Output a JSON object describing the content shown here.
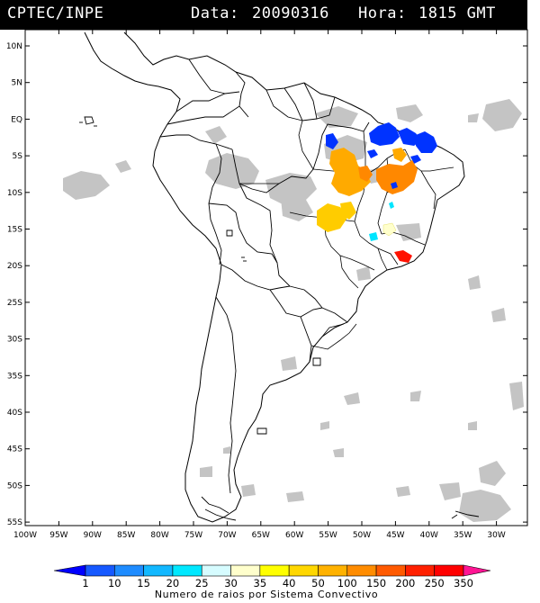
{
  "header": {
    "source": "CPTEC/INPE",
    "date_label": "Data:",
    "date": "20090316",
    "hour_label": "Hora:",
    "hour": "1815 GMT"
  },
  "map": {
    "lat_labels": [
      "10N",
      "5N",
      "EQ",
      "5S",
      "10S",
      "15S",
      "20S",
      "25S",
      "30S",
      "35S",
      "40S",
      "45S",
      "50S",
      "55S"
    ],
    "lon_labels": [
      "100W",
      "95W",
      "90W",
      "85W",
      "80W",
      "75W",
      "70W",
      "65W",
      "60W",
      "55W",
      "50W",
      "45W",
      "40W",
      "35W",
      "30W"
    ],
    "cloud_color": "#c4c4c4",
    "land_color": "#ffffff",
    "outline_color": "#000000",
    "lightning_clusters": [
      {
        "region": "Para east / Maranhao",
        "class": "1-10",
        "color": "#0033ff"
      },
      {
        "region": "Maranhao north",
        "class": "1-10",
        "color": "#0033ff"
      },
      {
        "region": "Ceara",
        "class": "1-10",
        "color": "#0033ff"
      },
      {
        "region": "Para central",
        "class": "1-10",
        "color": "#0033ff"
      },
      {
        "region": "Para south",
        "class": "100-150",
        "color": "#ffaa00"
      },
      {
        "region": "Mato Grosso",
        "class": "50-100",
        "color": "#ffcc00"
      },
      {
        "region": "Tocantins / Bahia",
        "class": "150-200",
        "color": "#ff8800"
      },
      {
        "region": "Goias",
        "class": "20-25",
        "color": "#00e5ff"
      },
      {
        "region": "Minas Gerais",
        "class": "250-350",
        "color": "#ff1100"
      }
    ]
  },
  "colorbar": {
    "labels": [
      "1",
      "10",
      "15",
      "20",
      "25",
      "30",
      "35",
      "40",
      "50",
      "100",
      "150",
      "200",
      "250",
      "350"
    ],
    "colors": [
      "#0000ff",
      "#1659ff",
      "#1e8cff",
      "#12b8ff",
      "#00e8ff",
      "#d6fcff",
      "#ffffcc",
      "#ffff00",
      "#ffd700",
      "#ffb200",
      "#ff8c00",
      "#ff5a00",
      "#ff2000",
      "#ff0000",
      "#ff1493"
    ],
    "title": "Numero de raios por Sistema Convectivo"
  }
}
